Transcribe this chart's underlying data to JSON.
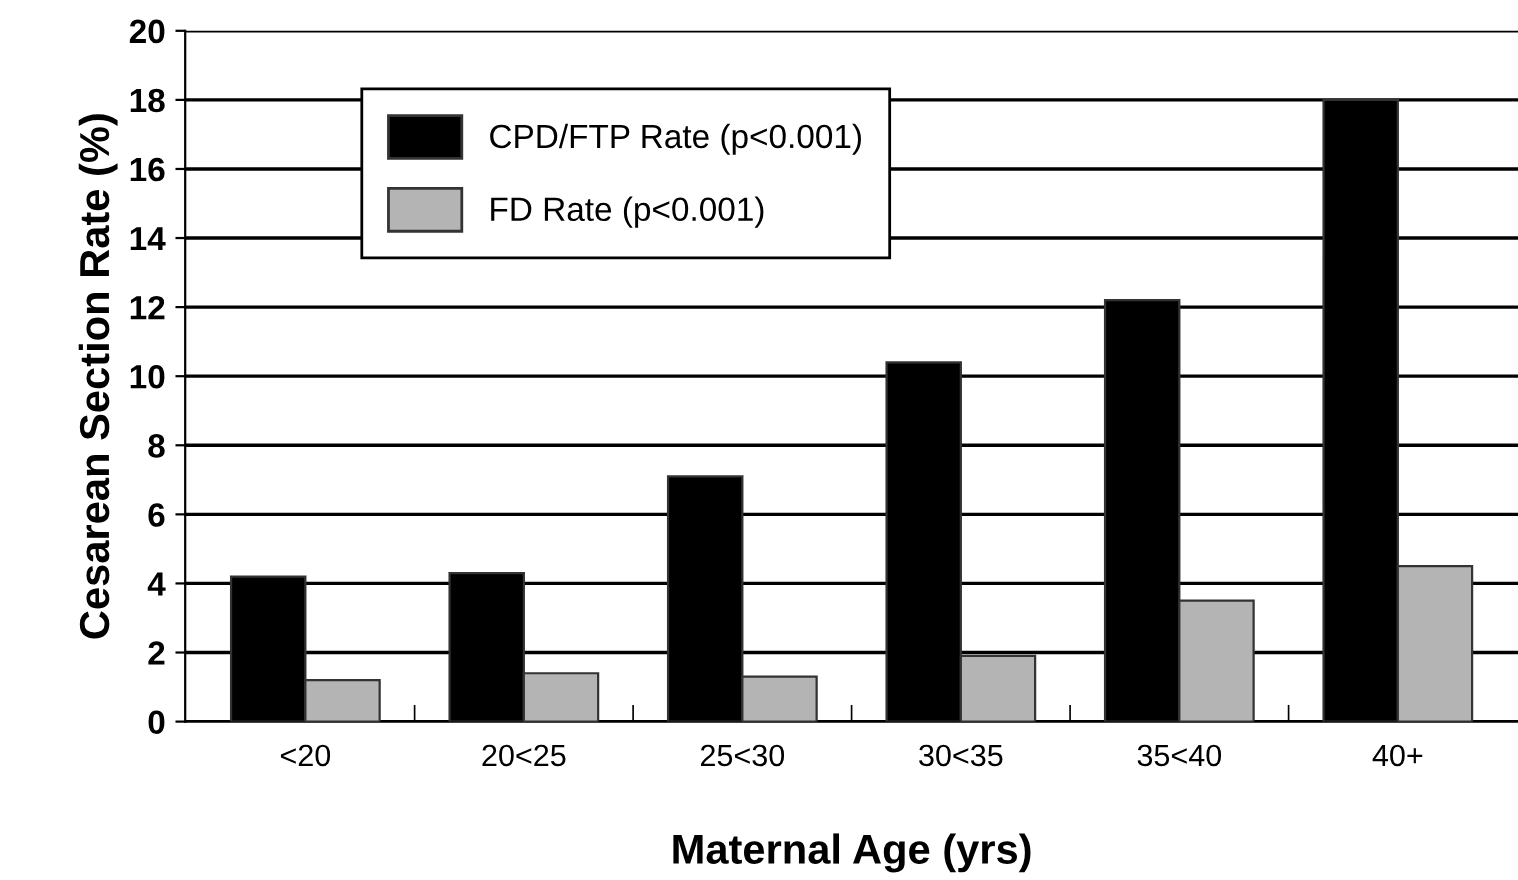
{
  "chart_data": {
    "type": "bar",
    "xlabel": "Maternal Age (yrs)",
    "ylabel": "Cesarean Section Rate (%)",
    "categories": [
      "<20",
      "20<25",
      "25<30",
      "30<35",
      "35<40",
      "40+"
    ],
    "series": [
      {
        "name": "CPD/FTP Rate (p<0.001)",
        "color": "#000000",
        "values": [
          4.2,
          4.3,
          7.1,
          10.4,
          12.2,
          18.0
        ]
      },
      {
        "name": "FD Rate (p<0.001)",
        "color": "#b4b4b4",
        "values": [
          1.2,
          1.4,
          1.3,
          1.9,
          3.5,
          4.5
        ]
      }
    ],
    "ylim": [
      0,
      20
    ],
    "yticks": [
      0,
      2,
      4,
      6,
      8,
      10,
      12,
      14,
      16,
      18,
      20
    ],
    "grid": "y",
    "legend": "top left"
  }
}
